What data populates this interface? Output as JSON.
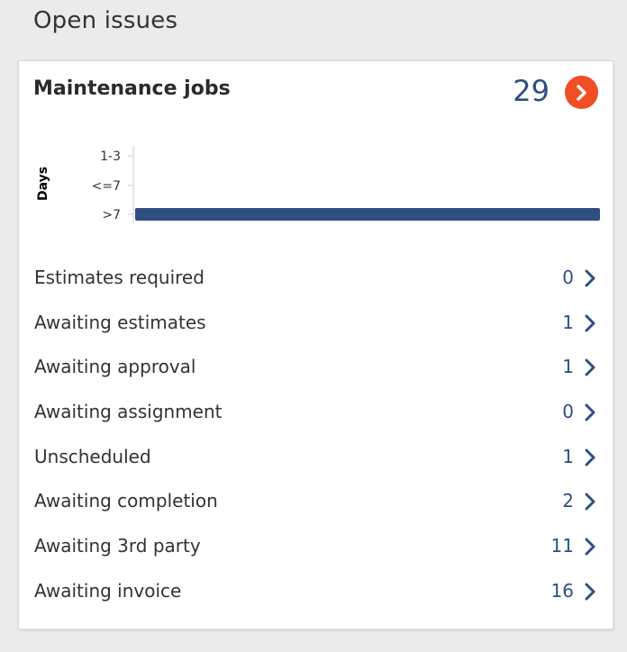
{
  "page": {
    "section_title": "Open issues"
  },
  "card": {
    "title": "Maintenance jobs",
    "count": "29",
    "go_icon": "chevron-right-icon",
    "accent_color": "#f04e23",
    "value_color": "#2f4f80"
  },
  "chart_data": {
    "type": "bar",
    "orientation": "horizontal",
    "ylabel": "Days",
    "categories": [
      "1-3",
      "<=7",
      ">7"
    ],
    "values": [
      0,
      0,
      29
    ],
    "xlim": [
      0,
      29
    ],
    "bar_color": "#2f4f80",
    "grid": false
  },
  "rows": [
    {
      "label": "Estimates required",
      "value": "0"
    },
    {
      "label": "Awaiting estimates",
      "value": "1"
    },
    {
      "label": "Awaiting approval",
      "value": "1"
    },
    {
      "label": "Awaiting assignment",
      "value": "0"
    },
    {
      "label": "Unscheduled",
      "value": "1"
    },
    {
      "label": "Awaiting completion",
      "value": "2"
    },
    {
      "label": "Awaiting 3rd party",
      "value": "11"
    },
    {
      "label": "Awaiting invoice",
      "value": "16"
    }
  ]
}
